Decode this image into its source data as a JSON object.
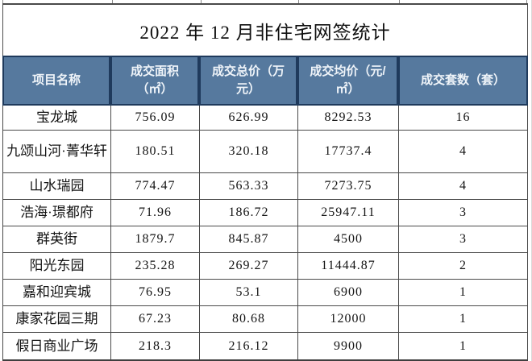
{
  "title": "2022 年 12 月非住宅网签统计",
  "colors": {
    "header_bg": "#56799E",
    "header_border": "#1F3A5C",
    "header_text": "#EFF4F9",
    "body_border": "#4A4A4A",
    "title_text": "#0F0F0F"
  },
  "chart_data": {
    "type": "table",
    "title": "2022 年 12 月非住宅网签统计",
    "columns": [
      "项目名称",
      "成交面积\n（㎡）",
      "成交总价（万\n元）",
      "成交均价（元/\n㎡）",
      "成交套数（套）"
    ],
    "column_meanings": [
      "project name",
      "transaction area (sq m)",
      "total price (10k yuan)",
      "average price (yuan per sq m)",
      "units sold"
    ],
    "rows": [
      [
        "宝龙城",
        756.09,
        626.99,
        8292.53,
        16
      ],
      [
        "九颂山河·菁华轩",
        180.51,
        320.18,
        17737.4,
        4
      ],
      [
        "山水瑞园",
        774.47,
        563.33,
        7273.75,
        4
      ],
      [
        "浩海·璟都府",
        71.96,
        186.72,
        25947.11,
        3
      ],
      [
        "群英街",
        1879.7,
        845.87,
        4500,
        3
      ],
      [
        "阳光东园",
        235.28,
        269.27,
        11444.87,
        2
      ],
      [
        "嘉和迎宾城",
        76.95,
        53.1,
        6900,
        1
      ],
      [
        "康家花园三期",
        67.23,
        80.68,
        12000,
        1
      ],
      [
        "假日商业广场",
        218.3,
        216.12,
        9900,
        1
      ]
    ]
  }
}
